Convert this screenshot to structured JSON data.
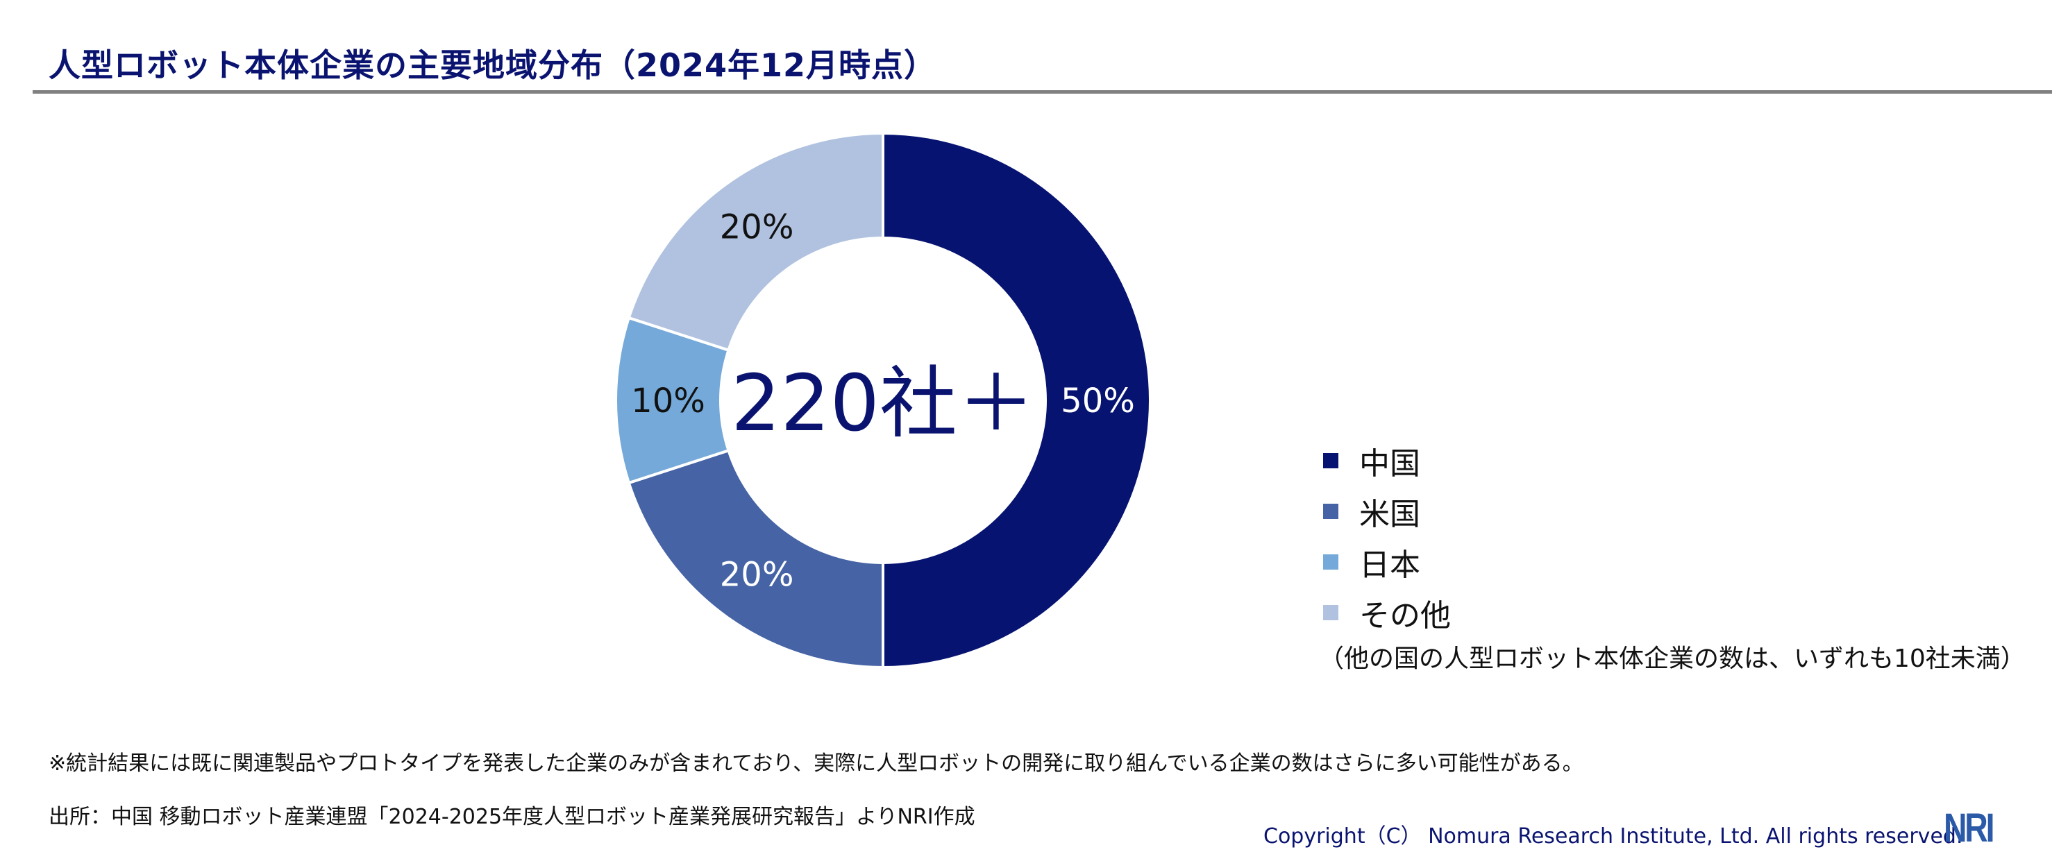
{
  "title": "人型ロボット本体企業の主要地域分布（2024年12月時点）",
  "chart_data": {
    "type": "pie",
    "variant": "donut",
    "title": "人型ロボット本体企業の主要地域分布（2024年12月時点）",
    "center_label": "220社＋",
    "categories": [
      "中国",
      "米国",
      "日本",
      "その他"
    ],
    "values": [
      50,
      20,
      10,
      20
    ],
    "value_labels": [
      "50%",
      "20%",
      "10%",
      "20%"
    ],
    "colors": [
      "#061371",
      "#4563a5",
      "#74a9d9",
      "#b0c2e0"
    ],
    "label_colors": [
      "#ffffff",
      "#ffffff",
      "#111111",
      "#111111"
    ],
    "legend_position": "right"
  },
  "legend_note": "（他の国の人型ロボット本体企業の数は、いずれも10社未満）",
  "footer": {
    "note": "※統計結果には既に関連製品やプロトタイプを発表した企業のみが含まれており、実際に人型ロボットの開発に取り組んでいる企業の数はさらに多い可能性がある。",
    "source": "出所：中国 移動ロボット産業連盟「2024-2025年度人型ロボット産業発展研究報告」よりNRI作成",
    "copyright": "Copyright（C） Nomura Research Institute, Ltd. All rights reserved.",
    "logo": "NRI"
  }
}
